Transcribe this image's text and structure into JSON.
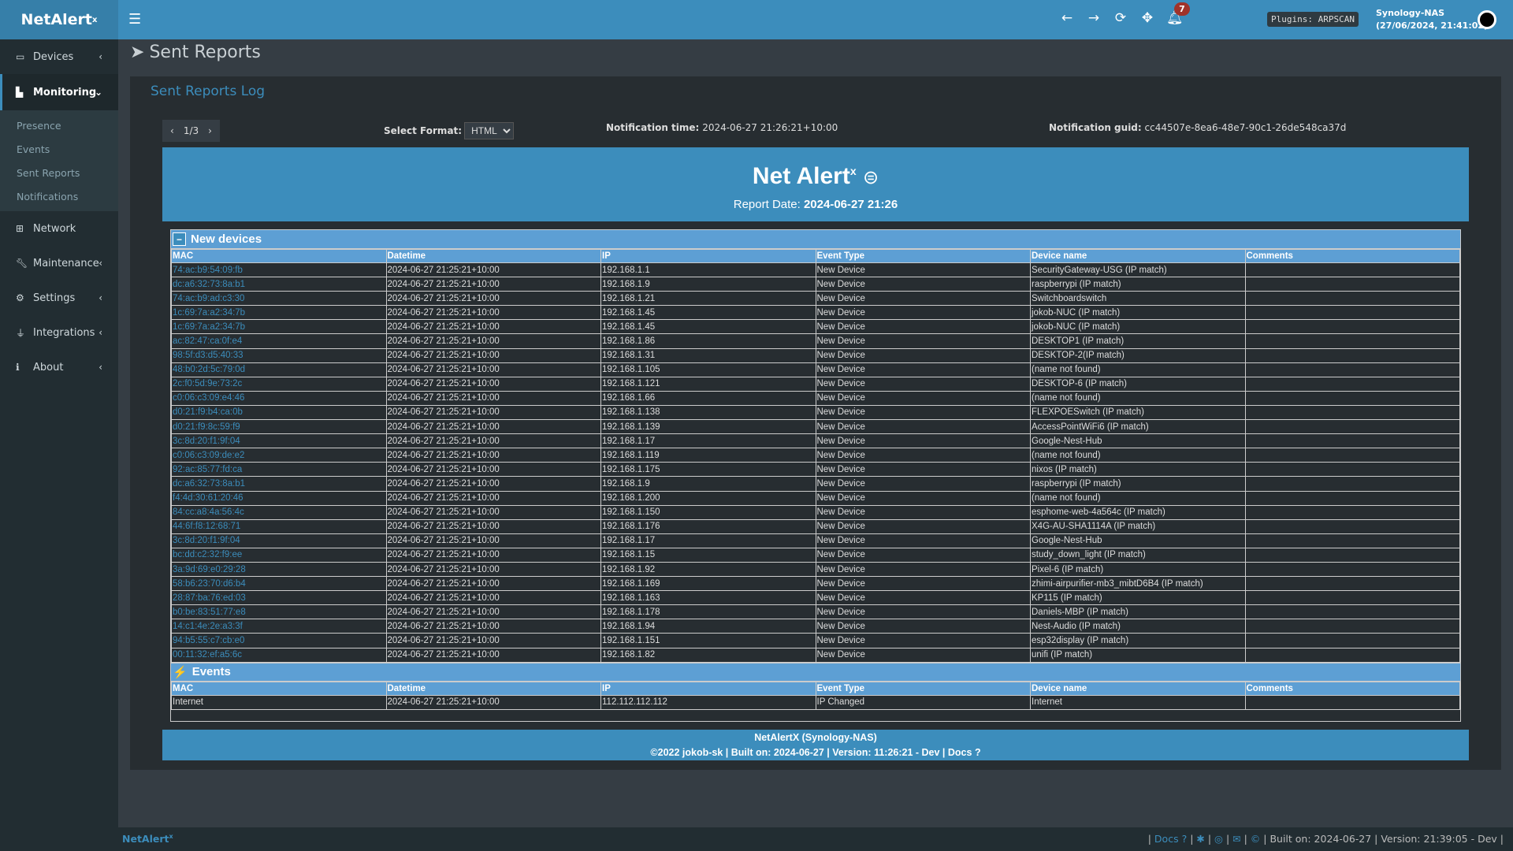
{
  "app": {
    "name": "NetAlert",
    "name_sup": "x"
  },
  "topbar": {
    "notifications_count": "7",
    "plugins": "Plugins: ARPSCAN",
    "host": "Synology-NAS",
    "datetime": "(27/06/2024, 21:41:02)"
  },
  "sidebar": {
    "items": [
      {
        "label": "Devices",
        "icon": "laptop-icon"
      },
      {
        "label": "Monitoring",
        "icon": "chart-icon",
        "active": true,
        "sub": [
          "Presence",
          "Events",
          "Sent Reports",
          "Notifications"
        ]
      },
      {
        "label": "Network",
        "icon": "sitemap-icon"
      },
      {
        "label": "Maintenance",
        "icon": "wrench-icon"
      },
      {
        "label": "Settings",
        "icon": "gear-icon"
      },
      {
        "label": "Integrations",
        "icon": "plug-icon"
      },
      {
        "label": "About",
        "icon": "info-icon"
      }
    ]
  },
  "page": {
    "title": "Sent Reports",
    "box_title": "Sent Reports Log",
    "pager": "1/3",
    "format_label": "Select Format:",
    "format_value": "HTML",
    "time_label": "Notification time:",
    "time_value": "2024-06-27 21:26:21+10:00",
    "guid_label": "Notification guid:",
    "guid_value": "cc44507e-8ea6-48e7-90c1-26de548ca37d"
  },
  "report": {
    "title": "Net Alert",
    "title_sup": "x",
    "date_label": "Report Date:",
    "date_value": "2024-06-27 21:26",
    "columns": [
      "MAC",
      "Datetime",
      "IP",
      "Event Type",
      "Device name",
      "Comments"
    ],
    "new_devices_title": "New devices",
    "new_devices": [
      [
        "74:ac:b9:54:09:fb",
        "192.168.1.1",
        "SecurityGateway-USG (IP match)"
      ],
      [
        "dc:a6:32:73:8a:b1",
        "192.168.1.9",
        "raspberrypi (IP match)"
      ],
      [
        "74:ac:b9:ad:c3:30",
        "192.168.1.21",
        "Switchboardswitch"
      ],
      [
        "1c:69:7a:a2:34:7b",
        "192.168.1.45",
        "jokob-NUC (IP match)"
      ],
      [
        "1c:69:7a:a2:34:7b",
        "192.168.1.45",
        "jokob-NUC (IP match)"
      ],
      [
        "ac:82:47:ca:0f:e4",
        "192.168.1.86",
        "DESKTOP1 (IP match)"
      ],
      [
        "98:5f:d3:d5:40:33",
        "192.168.1.31",
        "DESKTOP-2(IP match)"
      ],
      [
        "48:b0:2d:5c:79:0d",
        "192.168.1.105",
        "(name not found)"
      ],
      [
        "2c:f0:5d:9e:73:2c",
        "192.168.1.121",
        "DESKTOP-6 (IP match)"
      ],
      [
        "c0:06:c3:09:e4:46",
        "192.168.1.66",
        "(name not found)"
      ],
      [
        "d0:21:f9:b4:ca:0b",
        "192.168.1.138",
        "FLEXPOESwitch (IP match)"
      ],
      [
        "d0:21:f9:8c:59:f9",
        "192.168.1.139",
        "AccessPointWiFi6 (IP match)"
      ],
      [
        "3c:8d:20:f1:9f:04",
        "192.168.1.17",
        "Google-Nest-Hub"
      ],
      [
        "c0:06:c3:09:de:e2",
        "192.168.1.119",
        "(name not found)"
      ],
      [
        "92:ac:85:77:fd:ca",
        "192.168.1.175",
        "nixos (IP match)"
      ],
      [
        "dc:a6:32:73:8a:b1",
        "192.168.1.9",
        "raspberrypi (IP match)"
      ],
      [
        "f4:4d:30:61:20:46",
        "192.168.1.200",
        "(name not found)"
      ],
      [
        "84:cc:a8:4a:56:4c",
        "192.168.1.150",
        "esphome-web-4a564c (IP match)"
      ],
      [
        "44:6f:f8:12:68:71",
        "192.168.1.176",
        "X4G-AU-SHA1114A (IP match)"
      ],
      [
        "3c:8d:20:f1:9f:04",
        "192.168.1.17",
        "Google-Nest-Hub"
      ],
      [
        "bc:dd:c2:32:f9:ee",
        "192.168.1.15",
        "study_down_light (IP match)"
      ],
      [
        "3a:9d:69:e0:29:28",
        "192.168.1.92",
        "Pixel-6 (IP match)"
      ],
      [
        "58:b6:23:70:d6:b4",
        "192.168.1.169",
        "zhimi-airpurifier-mb3_mibtD6B4 (IP match)"
      ],
      [
        "28:87:ba:76:ed:03",
        "192.168.1.163",
        "KP115 (IP match)"
      ],
      [
        "b0:be:83:51:77:e8",
        "192.168.1.178",
        "Daniels-MBP (IP match)"
      ],
      [
        "14:c1:4e:2e:a3:3f",
        "192.168.1.94",
        "Nest-Audio (IP match)"
      ],
      [
        "94:b5:55:c7:cb:e0",
        "192.168.1.151",
        "esp32display (IP match)"
      ],
      [
        "00:11:32:ef:a5:6c",
        "192.168.1.82",
        "unifi (IP match)"
      ]
    ],
    "new_devices_datetime": "2024-06-27 21:25:21+10:00",
    "new_devices_event": "New Device",
    "events_title": "Events",
    "events": [
      [
        "Internet",
        "2024-06-27 21:25:21+10:00",
        "112.112.112.112",
        "IP Changed",
        "Internet",
        ""
      ]
    ],
    "footer_line1": "NetAlertX (Synology-NAS)",
    "footer_line2": "©2022 jokob-sk | Built on: 2024-06-27 | Version: 11:26:21 - Dev | Docs"
  },
  "bottombar": {
    "brand": "NetAlert",
    "brand_sup": "x",
    "docs": "Docs",
    "build": "| Built on: 2024-06-27 | Version: 21:39:05 - Dev |"
  }
}
